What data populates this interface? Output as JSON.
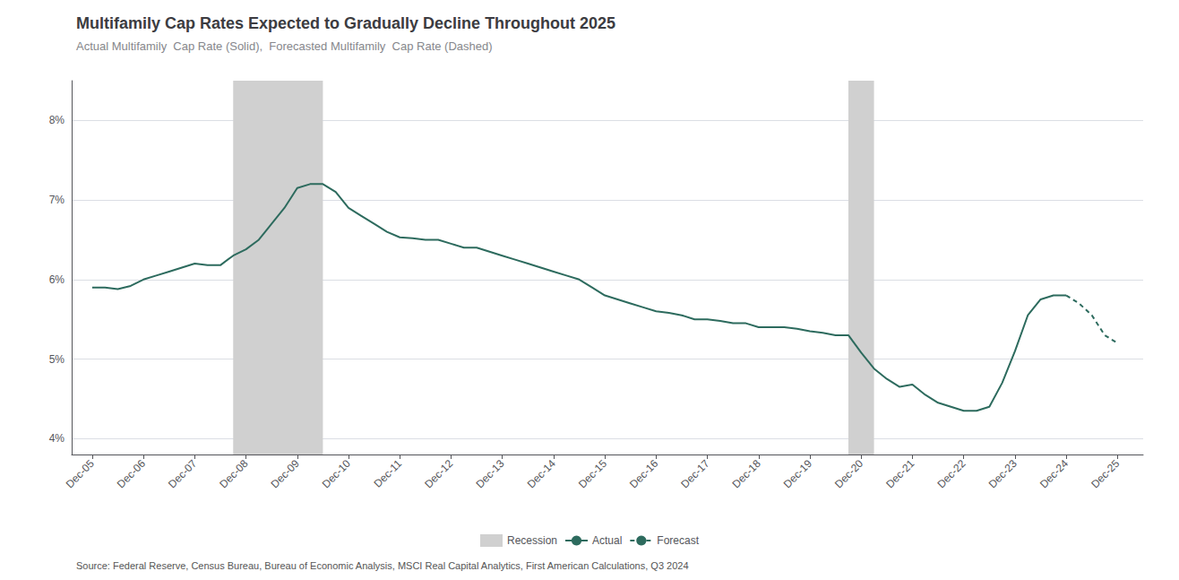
{
  "chart_data": {
    "type": "line",
    "title": "Multifamily Cap Rates Expected to Gradually Decline Throughout 2025",
    "subtitle": "Actual Multifamily  Cap Rate (Solid),  Forecasted Multifamily  Cap Rate (Dashed)",
    "source": "Source: Federal Reserve, Census Bureau, Bureau of Economic Analysis, MSCI Real Capital Analytics, First American Calculations, Q3 2024",
    "series": [
      {
        "name": "Actual",
        "color": "#2d6b5e",
        "line_style": "solid",
        "x": [
          2005.0,
          2005.25,
          2005.5,
          2005.75,
          2006.0,
          2006.25,
          2006.5,
          2006.75,
          2007.0,
          2007.25,
          2007.5,
          2007.75,
          2008.0,
          2008.25,
          2008.5,
          2008.75,
          2009.0,
          2009.25,
          2009.5,
          2009.75,
          2010.0,
          2010.25,
          2010.5,
          2010.75,
          2011.0,
          2011.25,
          2011.5,
          2011.75,
          2012.0,
          2012.25,
          2012.5,
          2012.75,
          2013.0,
          2013.25,
          2013.5,
          2013.75,
          2014.0,
          2014.25,
          2014.5,
          2014.75,
          2015.0,
          2015.25,
          2015.5,
          2015.75,
          2016.0,
          2016.25,
          2016.5,
          2016.75,
          2017.0,
          2017.25,
          2017.5,
          2017.75,
          2018.0,
          2018.25,
          2018.5,
          2018.75,
          2019.0,
          2019.25,
          2019.5,
          2019.75,
          2020.0,
          2020.25,
          2020.5,
          2020.75,
          2021.0,
          2021.25,
          2021.5,
          2021.75,
          2022.0,
          2022.25,
          2022.5,
          2022.75,
          2023.0,
          2023.25,
          2023.5,
          2023.75,
          2024.0
        ],
        "values": [
          0.059,
          0.059,
          0.0588,
          0.0592,
          0.06,
          0.0605,
          0.061,
          0.0615,
          0.062,
          0.0618,
          0.0618,
          0.063,
          0.0638,
          0.065,
          0.067,
          0.069,
          0.0715,
          0.072,
          0.072,
          0.071,
          0.069,
          0.068,
          0.067,
          0.066,
          0.0653,
          0.0652,
          0.065,
          0.065,
          0.0645,
          0.064,
          0.064,
          0.0635,
          0.063,
          0.0625,
          0.062,
          0.0615,
          0.061,
          0.0605,
          0.06,
          0.059,
          0.058,
          0.0575,
          0.057,
          0.0565,
          0.056,
          0.0558,
          0.0555,
          0.055,
          0.055,
          0.0548,
          0.0545,
          0.0545,
          0.054,
          0.054,
          0.054,
          0.0538,
          0.0535,
          0.0533,
          0.053,
          0.053,
          0.0508,
          0.0488,
          0.0475,
          0.0465,
          0.0468,
          0.0455,
          0.0445,
          0.044,
          0.0435,
          0.0435,
          0.044,
          0.047,
          0.051,
          0.0555,
          0.0575,
          0.058,
          0.058
        ]
      },
      {
        "name": "Forecast",
        "color": "#2d6b5e",
        "line_style": "dashed",
        "x": [
          2024.0,
          2024.25,
          2024.5,
          2024.75,
          2025.0
        ],
        "values": [
          0.058,
          0.057,
          0.0555,
          0.053,
          0.052
        ]
      }
    ],
    "shaded_regions": {
      "name": "Recession",
      "color": "#d0d0d0",
      "spans": [
        [
          2007.75,
          2009.5
        ],
        [
          2019.75,
          2020.25
        ]
      ]
    },
    "xlim": [
      2004.6,
      2025.5
    ],
    "xticks": [
      {
        "value": 2005.0,
        "label": "Dec-05"
      },
      {
        "value": 2006.0,
        "label": "Dec-06"
      },
      {
        "value": 2007.0,
        "label": "Dec-07"
      },
      {
        "value": 2008.0,
        "label": "Dec-08"
      },
      {
        "value": 2009.0,
        "label": "Dec-09"
      },
      {
        "value": 2010.0,
        "label": "Dec-10"
      },
      {
        "value": 2011.0,
        "label": "Dec-11"
      },
      {
        "value": 2012.0,
        "label": "Dec-12"
      },
      {
        "value": 2013.0,
        "label": "Dec-13"
      },
      {
        "value": 2014.0,
        "label": "Dec-14"
      },
      {
        "value": 2015.0,
        "label": "Dec-15"
      },
      {
        "value": 2016.0,
        "label": "Dec-16"
      },
      {
        "value": 2017.0,
        "label": "Dec-17"
      },
      {
        "value": 2018.0,
        "label": "Dec-18"
      },
      {
        "value": 2019.0,
        "label": "Dec-19"
      },
      {
        "value": 2020.0,
        "label": "Dec-20"
      },
      {
        "value": 2021.0,
        "label": "Dec-21"
      },
      {
        "value": 2022.0,
        "label": "Dec-22"
      },
      {
        "value": 2023.0,
        "label": "Dec-23"
      },
      {
        "value": 2024.0,
        "label": "Dec-24"
      },
      {
        "value": 2025.0,
        "label": "Dec-25"
      }
    ],
    "ylim": [
      0.038,
      0.085
    ],
    "yticks": [
      {
        "value": 0.04,
        "label": "4%"
      },
      {
        "value": 0.05,
        "label": "5%"
      },
      {
        "value": 0.06,
        "label": "6%"
      },
      {
        "value": 0.07,
        "label": "7%"
      },
      {
        "value": 0.08,
        "label": "8%"
      }
    ],
    "grid": true,
    "legend": "bottom"
  }
}
